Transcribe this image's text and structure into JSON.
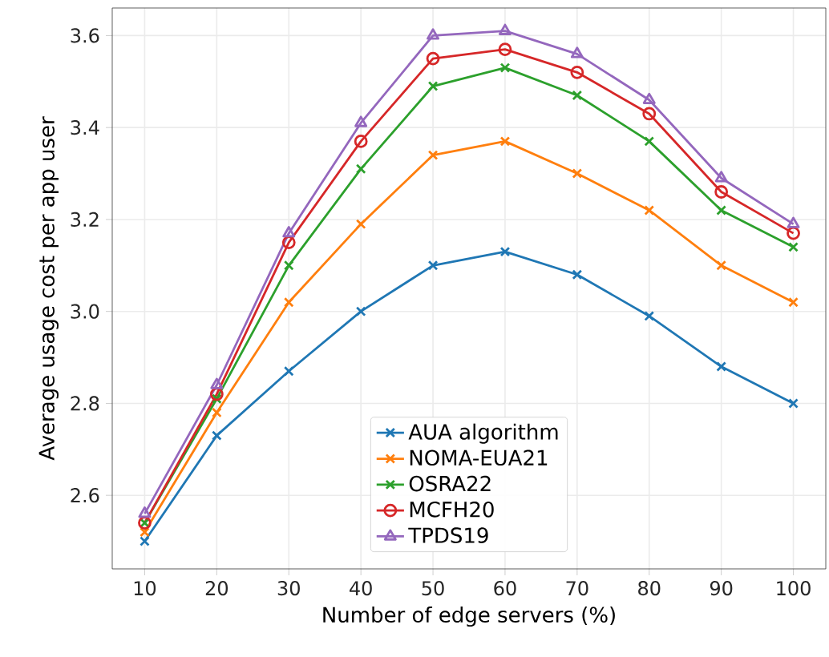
{
  "chart_data": {
    "type": "line",
    "xlabel": "Number of edge servers (%)",
    "ylabel": "Average usage cost per app user",
    "x": [
      10,
      20,
      30,
      40,
      50,
      60,
      70,
      80,
      90,
      100
    ],
    "series": [
      {
        "name": "AUA algorithm",
        "color": "#1f77b4",
        "marker": "cross",
        "values": [
          2.5,
          2.73,
          2.87,
          3.0,
          3.1,
          3.13,
          3.08,
          2.99,
          2.88,
          2.8
        ]
      },
      {
        "name": "NOMA-EUA21",
        "color": "#ff7f0e",
        "marker": "cross",
        "values": [
          2.52,
          2.78,
          3.02,
          3.19,
          3.34,
          3.37,
          3.3,
          3.22,
          3.1,
          3.02
        ]
      },
      {
        "name": "OSRA22",
        "color": "#2ca02c",
        "marker": "cross",
        "values": [
          2.54,
          2.81,
          3.1,
          3.31,
          3.49,
          3.53,
          3.47,
          3.37,
          3.22,
          3.14
        ]
      },
      {
        "name": "MCFH20",
        "color": "#d62728",
        "marker": "circle",
        "values": [
          2.54,
          2.82,
          3.15,
          3.37,
          3.55,
          3.57,
          3.52,
          3.43,
          3.26,
          3.17
        ]
      },
      {
        "name": "TPDS19",
        "color": "#9467bd",
        "marker": "triangle",
        "values": [
          2.56,
          2.84,
          3.17,
          3.41,
          3.6,
          3.61,
          3.56,
          3.46,
          3.29,
          3.19
        ]
      }
    ],
    "xlim": [
      5.5,
      104.5
    ],
    "ylim": [
      2.44,
      3.66
    ],
    "xticks": [
      10,
      20,
      30,
      40,
      50,
      60,
      70,
      80,
      90,
      100
    ],
    "yticks": [
      2.6,
      2.8,
      {
        "value": 3.0,
        "label": "3.0"
      },
      3.2,
      3.4,
      3.6
    ],
    "grid": true,
    "legend": "bottom",
    "line_style": "solid"
  }
}
